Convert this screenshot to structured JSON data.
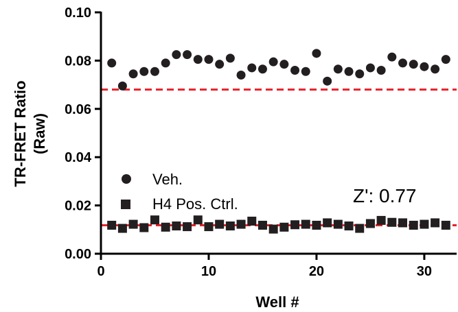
{
  "chart_data": {
    "type": "scatter",
    "title": "",
    "xlabel": "Well #",
    "ylabel_line1": "TR-FRET Ratio",
    "ylabel_line2": "(Raw)",
    "xlim": [
      0,
      33
    ],
    "ylim": [
      0.0,
      0.1
    ],
    "xticks": [
      0,
      10,
      20,
      30
    ],
    "xtick_labels": [
      "0",
      "10",
      "20",
      "30"
    ],
    "yticks": [
      0.0,
      0.02,
      0.04,
      0.06,
      0.08,
      0.1
    ],
    "ytick_labels": [
      "0.00",
      "0.02",
      "0.04",
      "0.06",
      "0.08",
      "0.10"
    ],
    "grid": false,
    "legend_placement": "left",
    "series": [
      {
        "name": "Veh.",
        "marker": "circle",
        "color": "#231f20",
        "x": [
          1,
          2,
          3,
          4,
          5,
          6,
          7,
          8,
          9,
          10,
          11,
          12,
          13,
          14,
          15,
          16,
          17,
          18,
          19,
          20,
          21,
          22,
          23,
          24,
          25,
          26,
          27,
          28,
          29,
          30,
          31,
          32
        ],
        "y": [
          0.079,
          0.0695,
          0.0745,
          0.0755,
          0.0755,
          0.079,
          0.0825,
          0.0825,
          0.0805,
          0.0805,
          0.0785,
          0.081,
          0.074,
          0.077,
          0.0765,
          0.0795,
          0.0785,
          0.076,
          0.0755,
          0.083,
          0.0715,
          0.0765,
          0.0755,
          0.0745,
          0.077,
          0.076,
          0.0815,
          0.079,
          0.0785,
          0.0775,
          0.0765,
          0.0805
        ]
      },
      {
        "name": "H4 Pos. Ctrl.",
        "marker": "square",
        "color": "#231f20",
        "x": [
          1,
          2,
          3,
          4,
          5,
          6,
          7,
          8,
          9,
          10,
          11,
          12,
          13,
          14,
          15,
          16,
          17,
          18,
          19,
          20,
          21,
          22,
          23,
          24,
          25,
          26,
          27,
          28,
          29,
          30,
          31,
          32
        ],
        "y": [
          0.0118,
          0.0105,
          0.0122,
          0.0108,
          0.014,
          0.011,
          0.0115,
          0.0112,
          0.014,
          0.0112,
          0.0122,
          0.0115,
          0.0122,
          0.0135,
          0.0118,
          0.0102,
          0.011,
          0.012,
          0.0122,
          0.0118,
          0.0128,
          0.0122,
          0.0115,
          0.0105,
          0.0125,
          0.0138,
          0.013,
          0.0128,
          0.0118,
          0.0122,
          0.0128,
          0.0118
        ]
      }
    ],
    "reference_lines": [
      {
        "y": 0.068,
        "color": "#e8202a"
      },
      {
        "y": 0.0118,
        "color": "#e8202a"
      }
    ],
    "annotation": "Z': 0.77"
  }
}
